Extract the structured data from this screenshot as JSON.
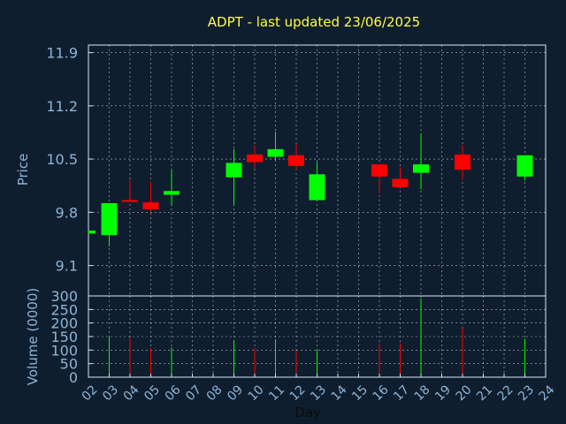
{
  "chart_data": {
    "type": "candlestick",
    "title": "ADPT - last updated 23/06/2025",
    "xlabel": "Day",
    "price_ylabel": "Price",
    "volume_ylabel": "Volume (0000)",
    "x_ticks": [
      "02",
      "03",
      "04",
      "05",
      "06",
      "07",
      "08",
      "09",
      "10",
      "11",
      "12",
      "13",
      "14",
      "15",
      "16",
      "17",
      "18",
      "19",
      "20",
      "21",
      "22",
      "23",
      "24"
    ],
    "price_ticks": [
      "9.1",
      "9.8",
      "10.5",
      "11.2",
      "11.9"
    ],
    "price_ylim": [
      8.7,
      12.0
    ],
    "volume_ticks": [
      "0",
      "50",
      "100",
      "150",
      "200",
      "250",
      "300"
    ],
    "volume_ylim": [
      0,
      300
    ],
    "grid": true,
    "colors": {
      "background": "#0f1e2e",
      "axis": "#dce6ee",
      "tick_text": "#8eb4d6",
      "title": "#ffff3c",
      "up": "#00ff00",
      "down": "#ff0000",
      "grid": "#ffffff"
    },
    "candles": [
      {
        "day": 2,
        "open": 9.52,
        "close": 9.56,
        "high": 9.56,
        "low": 9.52,
        "volume": 0
      },
      {
        "day": 3,
        "open": 9.5,
        "close": 9.92,
        "high": 9.92,
        "low": 9.35,
        "volume": 150
      },
      {
        "day": 4,
        "open": 9.96,
        "close": 9.95,
        "high": 10.23,
        "low": 9.95,
        "volume": 145
      },
      {
        "day": 5,
        "open": 9.93,
        "close": 9.84,
        "high": 10.2,
        "low": 9.8,
        "volume": 107
      },
      {
        "day": 6,
        "open": 10.03,
        "close": 10.08,
        "high": 10.35,
        "low": 9.89,
        "volume": 110
      },
      {
        "day": 9,
        "open": 10.26,
        "close": 10.45,
        "high": 10.63,
        "low": 9.89,
        "volume": 135
      },
      {
        "day": 10,
        "open": 10.56,
        "close": 10.46,
        "high": 10.68,
        "low": 10.38,
        "volume": 107
      },
      {
        "day": 11,
        "open": 10.53,
        "close": 10.63,
        "high": 10.86,
        "low": 10.49,
        "volume": 140
      },
      {
        "day": 12,
        "open": 10.55,
        "close": 10.41,
        "high": 10.7,
        "low": 10.35,
        "volume": 98
      },
      {
        "day": 13,
        "open": 9.96,
        "close": 10.3,
        "high": 10.46,
        "low": 9.96,
        "volume": 103
      },
      {
        "day": 16,
        "open": 10.43,
        "close": 10.27,
        "high": 10.43,
        "low": 10.05,
        "volume": 125
      },
      {
        "day": 17,
        "open": 10.24,
        "close": 10.13,
        "high": 10.39,
        "low": 10.13,
        "volume": 125
      },
      {
        "day": 18,
        "open": 10.32,
        "close": 10.43,
        "high": 10.84,
        "low": 10.1,
        "volume": 290
      },
      {
        "day": 20,
        "open": 10.56,
        "close": 10.36,
        "high": 10.68,
        "low": 10.23,
        "volume": 180
      },
      {
        "day": 23,
        "open": 10.27,
        "close": 10.55,
        "high": 10.55,
        "low": 10.22,
        "volume": 142
      }
    ]
  }
}
